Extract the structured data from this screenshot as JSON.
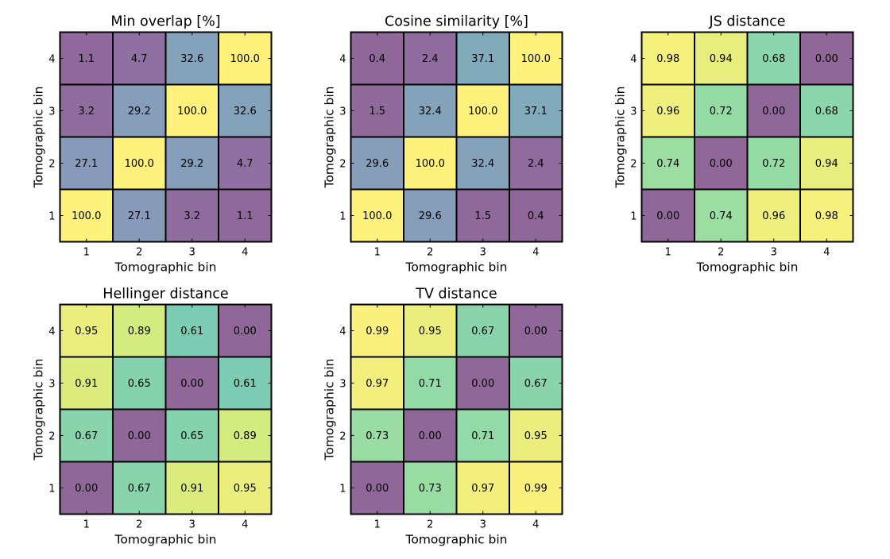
{
  "chart_data": [
    {
      "type": "heatmap",
      "title": "Min overlap [%]",
      "xlabel": "Tomographic bin",
      "ylabel": "Tomographic bin",
      "x_ticks": [
        "1",
        "2",
        "3",
        "4"
      ],
      "y_ticks": [
        "1",
        "2",
        "3",
        "4"
      ],
      "color_range": [
        0,
        100
      ],
      "rows_bottom_to_top": [
        [
          "100.0",
          "27.1",
          "3.2",
          "1.1"
        ],
        [
          "27.1",
          "100.0",
          "29.2",
          "4.7"
        ],
        [
          "3.2",
          "29.2",
          "100.0",
          "32.6"
        ],
        [
          "1.1",
          "4.7",
          "32.6",
          "100.0"
        ]
      ]
    },
    {
      "type": "heatmap",
      "title": "Cosine similarity [%]",
      "xlabel": "Tomographic bin",
      "ylabel": "Tomographic bin",
      "x_ticks": [
        "1",
        "2",
        "3",
        "4"
      ],
      "y_ticks": [
        "1",
        "2",
        "3",
        "4"
      ],
      "color_range": [
        0,
        100
      ],
      "rows_bottom_to_top": [
        [
          "100.0",
          "29.6",
          "1.5",
          "0.4"
        ],
        [
          "29.6",
          "100.0",
          "32.4",
          "2.4"
        ],
        [
          "1.5",
          "32.4",
          "100.0",
          "37.1"
        ],
        [
          "0.4",
          "2.4",
          "37.1",
          "100.0"
        ]
      ]
    },
    {
      "type": "heatmap",
      "title": "JS distance",
      "xlabel": "Tomographic bin",
      "ylabel": "Tomographic bin",
      "x_ticks": [
        "1",
        "2",
        "3",
        "4"
      ],
      "y_ticks": [
        "1",
        "2",
        "3",
        "4"
      ],
      "color_range": [
        0,
        1
      ],
      "rows_bottom_to_top": [
        [
          "0.00",
          "0.74",
          "0.96",
          "0.98"
        ],
        [
          "0.74",
          "0.00",
          "0.72",
          "0.94"
        ],
        [
          "0.96",
          "0.72",
          "0.00",
          "0.68"
        ],
        [
          "0.98",
          "0.94",
          "0.68",
          "0.00"
        ]
      ]
    },
    {
      "type": "heatmap",
      "title": "Hellinger distance",
      "xlabel": "Tomographic bin",
      "ylabel": "Tomographic bin",
      "x_ticks": [
        "1",
        "2",
        "3",
        "4"
      ],
      "y_ticks": [
        "1",
        "2",
        "3",
        "4"
      ],
      "color_range": [
        0,
        1
      ],
      "rows_bottom_to_top": [
        [
          "0.00",
          "0.67",
          "0.91",
          "0.95"
        ],
        [
          "0.67",
          "0.00",
          "0.65",
          "0.89"
        ],
        [
          "0.91",
          "0.65",
          "0.00",
          "0.61"
        ],
        [
          "0.95",
          "0.89",
          "0.61",
          "0.00"
        ]
      ]
    },
    {
      "type": "heatmap",
      "title": "TV distance",
      "xlabel": "Tomographic bin",
      "ylabel": "Tomographic bin",
      "x_ticks": [
        "1",
        "2",
        "3",
        "4"
      ],
      "y_ticks": [
        "1",
        "2",
        "3",
        "4"
      ],
      "color_range": [
        0,
        1
      ],
      "rows_bottom_to_top": [
        [
          "0.00",
          "0.73",
          "0.97",
          "0.99"
        ],
        [
          "0.73",
          "0.00",
          "0.71",
          "0.95"
        ],
        [
          "0.97",
          "0.71",
          "0.00",
          "0.67"
        ],
        [
          "0.99",
          "0.95",
          "0.67",
          "0.00"
        ]
      ]
    }
  ],
  "colormap": "viridis",
  "cell_alpha": 0.6
}
